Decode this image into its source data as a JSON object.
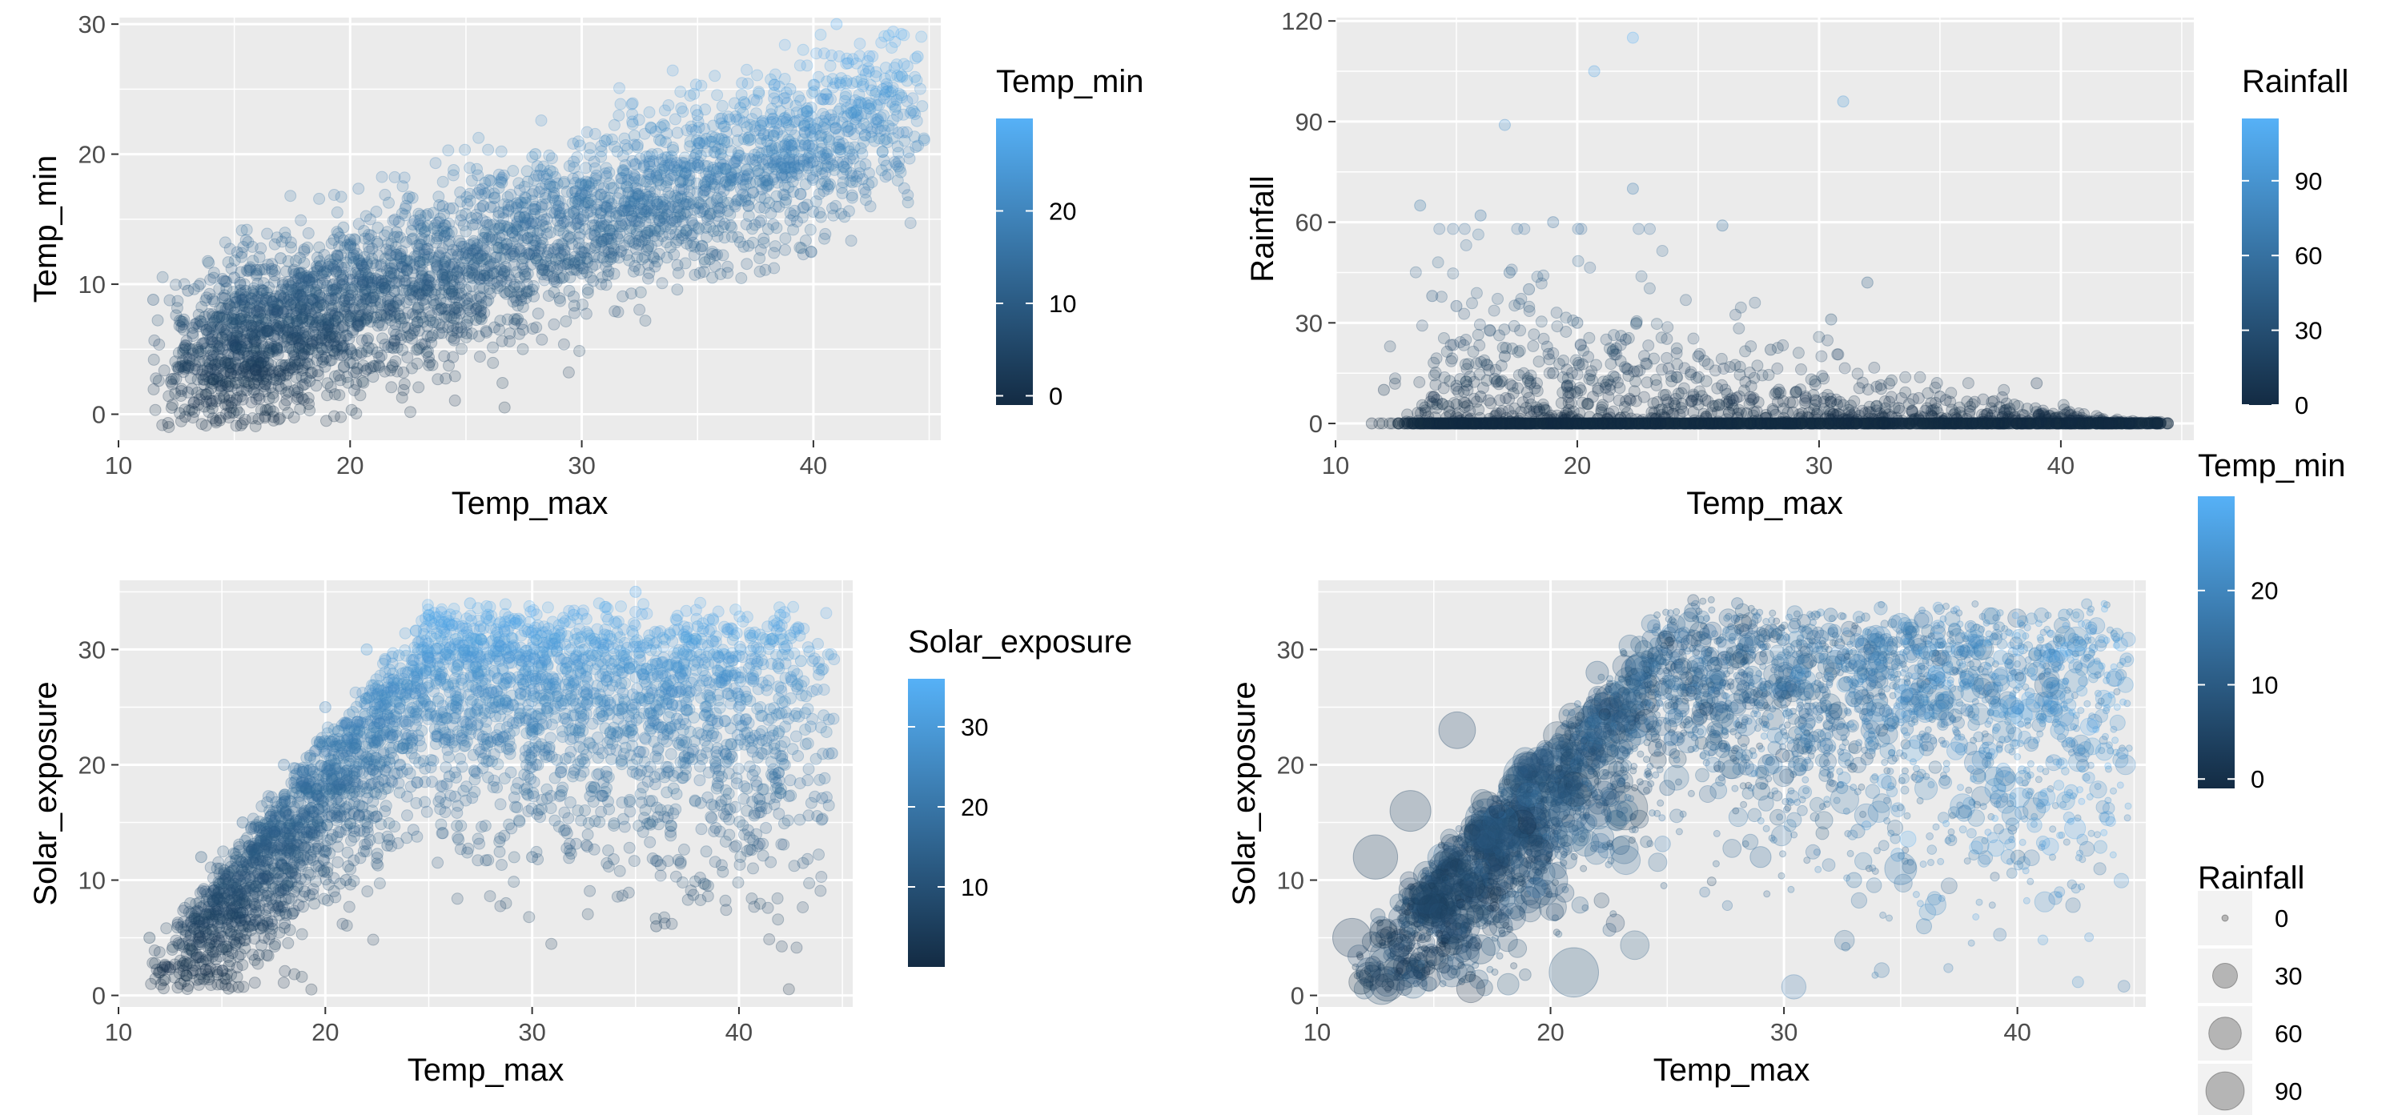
{
  "colors": {
    "low": "#132B43",
    "high": "#56B1F7",
    "panel": "#EBEBEB",
    "grid": "#FFFFFF"
  },
  "chart_data": [
    {
      "type": "scatter",
      "xlabel": "Temp_max",
      "ylabel": "Temp_min",
      "xlim": [
        10,
        45.5
      ],
      "ylim": [
        -2,
        30.5
      ],
      "xticks": [
        10,
        20,
        30,
        40
      ],
      "yticks": [
        0,
        10,
        20,
        30
      ],
      "color_by": "Temp_min",
      "legend": {
        "title": "Temp_min",
        "type": "colorbar",
        "ticks": [
          0,
          10,
          20
        ],
        "range": [
          -1,
          30
        ]
      },
      "points": [
        [
          11.5,
          8.8
        ],
        [
          13,
          9.5
        ],
        [
          14,
          2
        ],
        [
          14.5,
          5
        ],
        [
          15,
          10.5
        ],
        [
          16,
          3
        ],
        [
          17,
          12
        ],
        [
          18,
          8
        ],
        [
          19,
          11
        ],
        [
          20,
          13
        ],
        [
          20,
          5
        ],
        [
          21,
          9
        ],
        [
          22,
          14
        ],
        [
          23,
          10
        ],
        [
          24,
          16
        ],
        [
          25,
          12
        ],
        [
          26,
          18
        ],
        [
          27,
          14
        ],
        [
          28,
          20
        ],
        [
          29,
          16
        ],
        [
          30,
          17
        ],
        [
          31,
          21
        ],
        [
          32,
          18
        ],
        [
          33,
          22
        ],
        [
          34,
          19
        ],
        [
          35,
          23
        ],
        [
          36,
          20
        ],
        [
          37,
          24
        ],
        [
          38,
          21
        ],
        [
          39,
          25
        ],
        [
          40,
          22
        ],
        [
          41,
          30
        ],
        [
          41.5,
          27
        ],
        [
          42,
          24
        ],
        [
          43,
          25
        ],
        [
          44.5,
          27.5
        ]
      ]
    },
    {
      "type": "scatter",
      "xlabel": "Temp_max",
      "ylabel": "Rainfall",
      "xlim": [
        10,
        45.5
      ],
      "ylim": [
        -5,
        121
      ],
      "xticks": [
        10,
        20,
        30,
        40
      ],
      "yticks": [
        0,
        30,
        60,
        90,
        120
      ],
      "color_by": "Rainfall",
      "legend": {
        "title": "Rainfall",
        "type": "colorbar",
        "ticks": [
          0,
          30,
          60,
          90
        ],
        "range": [
          0,
          115
        ]
      },
      "points": [
        [
          13.5,
          65
        ],
        [
          17,
          89
        ],
        [
          17.2,
          45
        ],
        [
          16,
          62
        ],
        [
          19,
          60
        ],
        [
          20.7,
          105
        ],
        [
          22.3,
          115
        ],
        [
          22.3,
          70
        ],
        [
          31,
          96
        ],
        [
          26,
          59
        ],
        [
          32,
          42
        ],
        [
          30.5,
          31
        ],
        [
          15,
          35
        ],
        [
          18,
          40
        ],
        [
          14,
          38
        ],
        [
          20,
          30
        ],
        [
          25,
          20
        ],
        [
          28,
          22
        ],
        [
          35,
          8
        ],
        [
          39,
          12
        ],
        [
          12,
          10
        ],
        [
          22,
          25
        ],
        [
          17,
          20
        ],
        [
          19,
          15
        ],
        [
          16,
          8
        ],
        [
          24,
          6
        ],
        [
          27,
          3
        ],
        [
          33,
          2
        ],
        [
          38,
          1
        ],
        [
          42,
          0
        ],
        [
          44,
          0
        ],
        [
          11.5,
          0
        ]
      ]
    },
    {
      "type": "scatter",
      "xlabel": "Temp_max",
      "ylabel": "Solar_exposure",
      "xlim": [
        10,
        45.5
      ],
      "ylim": [
        -1,
        36
      ],
      "xticks": [
        10,
        20,
        30,
        40
      ],
      "yticks": [
        0,
        10,
        20,
        30
      ],
      "color_by": "Solar_exposure",
      "legend": {
        "title": "Solar_exposure",
        "type": "colorbar",
        "ticks": [
          10,
          20,
          30
        ],
        "range": [
          0,
          36
        ]
      },
      "points": [
        [
          11.5,
          5
        ],
        [
          12,
          2
        ],
        [
          13,
          1
        ],
        [
          14,
          12
        ],
        [
          15,
          4
        ],
        [
          16,
          15
        ],
        [
          17,
          6
        ],
        [
          18,
          20
        ],
        [
          19,
          9
        ],
        [
          20,
          25
        ],
        [
          21,
          10
        ],
        [
          22,
          30
        ],
        [
          23,
          13
        ],
        [
          24,
          28
        ],
        [
          25,
          33
        ],
        [
          26,
          19
        ],
        [
          27,
          34
        ],
        [
          28,
          22
        ],
        [
          29,
          31
        ],
        [
          30,
          12
        ],
        [
          31,
          27
        ],
        [
          32,
          33
        ],
        [
          33,
          18
        ],
        [
          34,
          29
        ],
        [
          35,
          35
        ],
        [
          36,
          6
        ],
        [
          37,
          24
        ],
        [
          38,
          32
        ],
        [
          39,
          19
        ],
        [
          40,
          25
        ],
        [
          41,
          17
        ],
        [
          42,
          33
        ],
        [
          43,
          29
        ],
        [
          44.5,
          21
        ]
      ]
    },
    {
      "type": "scatter",
      "xlabel": "Temp_max",
      "ylabel": "Solar_exposure",
      "xlim": [
        10,
        45.5
      ],
      "ylim": [
        -1,
        36
      ],
      "xticks": [
        10,
        20,
        30,
        40
      ],
      "yticks": [
        0,
        10,
        20,
        30
      ],
      "color_by": "Temp_min",
      "size_by": "Rainfall",
      "legend": [
        {
          "title": "Temp_min",
          "type": "colorbar",
          "ticks": [
            0,
            10,
            20
          ],
          "range": [
            -1,
            30
          ]
        },
        {
          "title": "Rainfall",
          "type": "size",
          "ticks": [
            0,
            30,
            60,
            90
          ]
        }
      ],
      "points": [
        [
          11.5,
          5,
          40
        ],
        [
          12.5,
          12,
          55
        ],
        [
          13,
          1,
          30
        ],
        [
          14,
          16,
          45
        ],
        [
          15,
          8,
          60
        ],
        [
          16,
          23,
          35
        ],
        [
          17,
          4,
          20
        ],
        [
          18,
          14,
          25
        ],
        [
          19,
          20,
          15
        ],
        [
          20,
          10,
          30
        ],
        [
          21,
          2,
          70
        ],
        [
          22,
          28,
          10
        ],
        [
          23,
          13,
          5
        ],
        [
          24,
          30,
          5
        ],
        [
          25,
          18,
          3
        ],
        [
          26,
          33,
          2
        ],
        [
          27,
          22,
          4
        ],
        [
          28,
          34,
          1
        ],
        [
          29,
          12,
          8
        ],
        [
          30,
          27,
          2
        ],
        [
          31,
          20,
          1
        ],
        [
          32,
          33,
          2
        ],
        [
          33,
          10,
          3
        ],
        [
          34,
          29,
          5
        ],
        [
          35,
          11,
          25
        ],
        [
          36,
          6,
          3
        ],
        [
          37,
          24,
          2
        ],
        [
          38,
          32,
          1
        ],
        [
          39,
          19,
          6
        ],
        [
          40,
          25,
          2
        ],
        [
          41,
          17,
          3
        ],
        [
          42,
          33,
          1
        ],
        [
          43,
          29,
          2
        ],
        [
          44.5,
          21,
          1
        ]
      ]
    }
  ]
}
